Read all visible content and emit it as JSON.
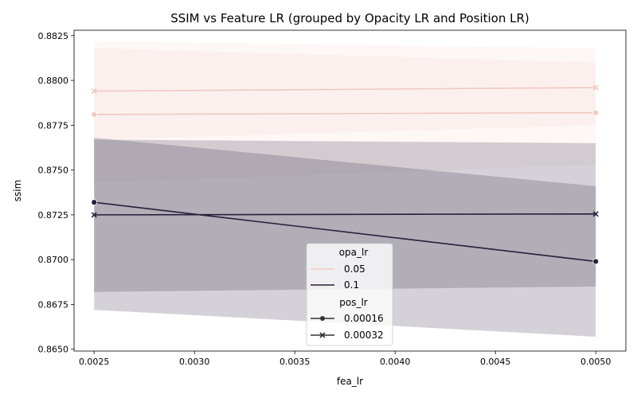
{
  "chart_data": {
    "type": "line",
    "title": "SSIM vs Feature LR (grouped by Opacity LR and Position LR)",
    "xlabel": "fea_lr",
    "ylabel": "ssim",
    "xlim": [
      0.0024,
      0.00515
    ],
    "ylim": [
      0.8649,
      0.8828
    ],
    "xticks": [
      0.0025,
      0.003,
      0.0035,
      0.004,
      0.0045,
      0.005
    ],
    "xtick_labels": [
      "0.0025",
      "0.0030",
      "0.0035",
      "0.0040",
      "0.0045",
      "0.0050"
    ],
    "yticks": [
      0.865,
      0.8675,
      0.87,
      0.8725,
      0.875,
      0.8775,
      0.88,
      0.8825
    ],
    "ytick_labels": [
      "0.8650",
      "0.8675",
      "0.8700",
      "0.8725",
      "0.8750",
      "0.8775",
      "0.8800",
      "0.8825"
    ],
    "grid": false,
    "legend_position": "bottom-center",
    "colors": {
      "opa_0.05": "#f0c9c0",
      "opa_0.1": "#2a1e3c"
    },
    "legend": {
      "hue_title": "opa_lr",
      "hue_entries": [
        {
          "label": "0.05",
          "color": "#f0c9c0"
        },
        {
          "label": "0.1",
          "color": "#2a1e3c"
        }
      ],
      "style_title": "pos_lr",
      "style_entries": [
        {
          "label": "0.00016",
          "marker": "circle"
        },
        {
          "label": "0.00032",
          "marker": "x"
        }
      ]
    },
    "series": [
      {
        "opa_lr": "0.05",
        "pos_lr": "0.00016",
        "marker": "circle",
        "color": "#f0c9c0",
        "x": [
          0.0025,
          0.005
        ],
        "y": [
          0.8781,
          0.8782
        ],
        "ci_low": [
          0.8743,
          0.8753
        ],
        "ci_high": [
          0.8818,
          0.881
        ]
      },
      {
        "opa_lr": "0.05",
        "pos_lr": "0.00032",
        "marker": "x",
        "color": "#f0c9c0",
        "x": [
          0.0025,
          0.005
        ],
        "y": [
          0.8794,
          0.8796
        ],
        "ci_low": [
          0.8767,
          0.8775
        ],
        "ci_high": [
          0.8822,
          0.8818
        ]
      },
      {
        "opa_lr": "0.1",
        "pos_lr": "0.00016",
        "marker": "circle",
        "color": "#2a1e3c",
        "x": [
          0.0025,
          0.005
        ],
        "y": [
          0.8732,
          0.8699
        ],
        "ci_low": [
          0.8682,
          0.8685
        ],
        "ci_high": [
          0.8768,
          0.8741
        ]
      },
      {
        "opa_lr": "0.1",
        "pos_lr": "0.00032",
        "marker": "x",
        "color": "#2a1e3c",
        "x": [
          0.0025,
          0.005
        ],
        "y": [
          0.8725,
          0.87255
        ],
        "ci_low": [
          0.8672,
          0.8657
        ],
        "ci_high": [
          0.8767,
          0.8765
        ]
      }
    ]
  }
}
